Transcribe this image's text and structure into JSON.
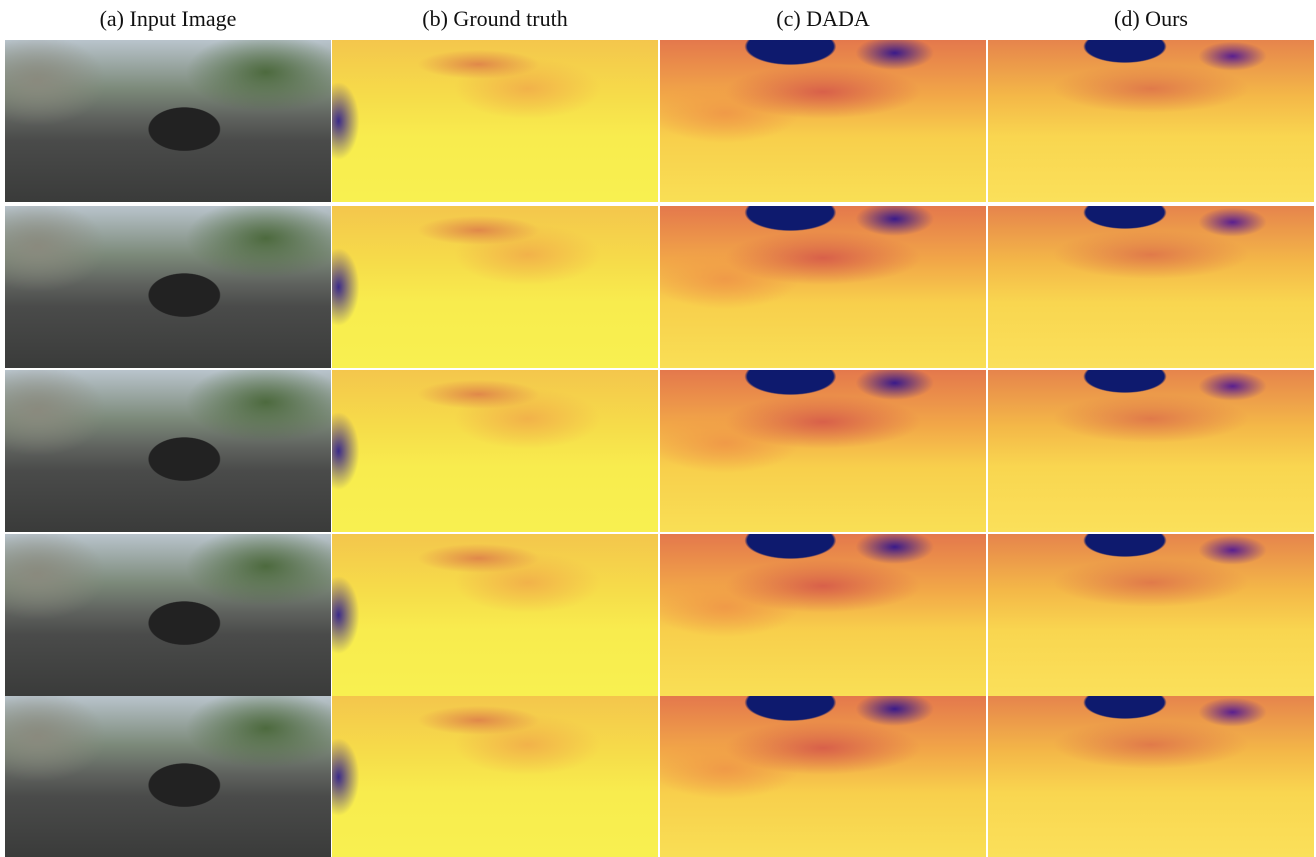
{
  "columns": [
    "(a) Input Image",
    "(b) Ground truth",
    "(c) DADA",
    "(d) Ours"
  ]
}
